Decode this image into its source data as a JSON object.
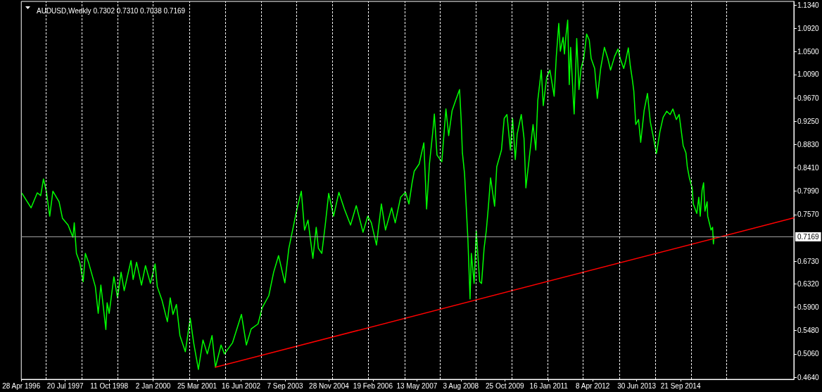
{
  "chart_data": {
    "type": "line",
    "title": "AUDUSD,Weekly 0.7302 0.7310 0.7038 0.7169",
    "series": [
      {
        "color": "#00ff00",
        "x": [
          "1996-05-06",
          "1996-08-06",
          "1996-10-08",
          "1996-11-12",
          "1996-12-10",
          "1997-01-08",
          "1997-02-12",
          "1997-03-16",
          "1997-05-18",
          "1997-06-22",
          "1997-08-18",
          "1997-10-06",
          "1997-10-20",
          "1997-11-11",
          "1997-12-15",
          "1998-01-19",
          "1998-02-10",
          "1998-03-14",
          "1998-05-23",
          "1998-06-21",
          "1998-07-18",
          "1998-09-07",
          "1998-09-20",
          "1998-10-11",
          "1998-11-28",
          "1999-01-04",
          "1999-02-09",
          "1999-03-13",
          "1999-05-21",
          "1999-06-12",
          "1999-07-17",
          "1999-09-05",
          "1999-10-16",
          "1999-12-05",
          "2000-01-22",
          "2000-02-13",
          "2000-04-02",
          "2000-05-26",
          "2000-06-24",
          "2000-07-22",
          "2000-08-26",
          "2000-10-01",
          "2000-11-25",
          "2001-01-14",
          "2001-02-18",
          "2001-04-07",
          "2001-05-24",
          "2001-07-07",
          "2001-08-24",
          "2001-09-28",
          "2001-11-24",
          "2001-12-28",
          "2002-03-21",
          "2002-06-20",
          "2002-08-09",
          "2002-09-27",
          "2002-12-06",
          "2003-01-17",
          "2003-03-26",
          "2003-05-14",
          "2003-07-03",
          "2003-09-05",
          "2003-10-16",
          "2003-12-04",
          "2004-01-02",
          "2004-02-20",
          "2004-03-24",
          "2004-04-28",
          "2004-06-17",
          "2004-07-21",
          "2004-08-12",
          "2004-09-16",
          "2004-10-21",
          "2004-11-25",
          "2005-01-14",
          "2005-03-09",
          "2005-05-04",
          "2005-07-06",
          "2005-09-02",
          "2005-11-10",
          "2005-12-28",
          "2006-02-03",
          "2006-03-27",
          "2006-05-16",
          "2006-06-27",
          "2006-08-29",
          "2006-10-04",
          "2006-11-28",
          "2007-01-17",
          "2007-02-21",
          "2007-03-25",
          "2007-04-16",
          "2007-06-05",
          "2007-07-23",
          "2007-08-20",
          "2007-09-18",
          "2007-10-22",
          "2007-11-07",
          "2007-12-04",
          "2008-01-22",
          "2008-03-04",
          "2008-04-01",
          "2008-05-06",
          "2008-06-10",
          "2008-07-21",
          "2008-08-05",
          "2008-08-19",
          "2008-09-10",
          "2008-10-14",
          "2008-11-05",
          "2008-11-18",
          "2008-12-16",
          "2009-01-07",
          "2009-02-11",
          "2009-03-02",
          "2009-03-28",
          "2009-04-20",
          "2009-05-11",
          "2009-06-02",
          "2009-07-13",
          "2009-08-04",
          "2009-09-21",
          "2009-10-19",
          "2009-11-16",
          "2009-12-21",
          "2010-01-12",
          "2010-02-09",
          "2010-02-28",
          "2010-04-11",
          "2010-05-09",
          "2010-05-28",
          "2010-06-27",
          "2010-08-09",
          "2010-09-06",
          "2010-09-26",
          "2010-11-01",
          "2010-11-21",
          "2010-12-26",
          "2011-01-28",
          "2011-03-12",
          "2011-04-03",
          "2011-04-28",
          "2011-05-14",
          "2011-06-11",
          "2011-06-25",
          "2011-07-09",
          "2011-07-28",
          "2011-08-13",
          "2011-08-27",
          "2011-09-24",
          "2011-10-02",
          "2011-10-28",
          "2011-11-20",
          "2011-12-11",
          "2012-01-08",
          "2012-02-06",
          "2012-03-04",
          "2012-03-23",
          "2012-04-28",
          "2012-05-25",
          "2012-06-28",
          "2012-08-05",
          "2012-09-09",
          "2012-10-07",
          "2012-11-18",
          "2012-12-22",
          "2013-01-13",
          "2013-02-18",
          "2013-03-09",
          "2013-04-06",
          "2013-04-26",
          "2013-05-17",
          "2013-06-01",
          "2013-06-21",
          "2013-07-19",
          "2013-08-10",
          "2013-09-14",
          "2013-10-18",
          "2013-11-16",
          "2013-12-14",
          "2014-01-18",
          "2014-02-22",
          "2014-03-27",
          "2014-05-02",
          "2014-06-06",
          "2014-07-04",
          "2014-08-08",
          "2014-09-06",
          "2014-10-17",
          "2014-11-14",
          "2014-11-28",
          "2014-12-19",
          "2015-01-16",
          "2015-01-28",
          "2015-03-05",
          "2015-03-25",
          "2015-04-09",
          "2015-04-28",
          "2015-05-13",
          "2015-05-27",
          "2015-06-18",
          "2015-06-24",
          "2015-07-16",
          "2015-07-28",
          "2015-08-13",
          "2015-08-21",
          "2015-08-27"
        ],
        "values": [
          0.795,
          0.769,
          0.796,
          0.791,
          0.821,
          0.799,
          0.754,
          0.799,
          0.78,
          0.75,
          0.738,
          0.716,
          0.742,
          0.687,
          0.671,
          0.636,
          0.687,
          0.671,
          0.627,
          0.579,
          0.63,
          0.55,
          0.598,
          0.579,
          0.645,
          0.607,
          0.653,
          0.62,
          0.674,
          0.64,
          0.671,
          0.63,
          0.665,
          0.633,
          0.668,
          0.627,
          0.602,
          0.564,
          0.607,
          0.577,
          0.595,
          0.539,
          0.51,
          0.57,
          0.526,
          0.478,
          0.531,
          0.506,
          0.539,
          0.482,
          0.522,
          0.506,
          0.526,
          0.577,
          0.522,
          0.551,
          0.56,
          0.589,
          0.611,
          0.653,
          0.683,
          0.634,
          0.696,
          0.738,
          0.763,
          0.799,
          0.729,
          0.747,
          0.678,
          0.734,
          0.696,
          0.687,
          0.738,
          0.795,
          0.754,
          0.797,
          0.767,
          0.738,
          0.773,
          0.725,
          0.754,
          0.742,
          0.702,
          0.776,
          0.729,
          0.769,
          0.742,
          0.788,
          0.797,
          0.776,
          0.814,
          0.835,
          0.848,
          0.886,
          0.767,
          0.848,
          0.906,
          0.938,
          0.864,
          0.852,
          0.947,
          0.899,
          0.944,
          0.962,
          0.982,
          0.932,
          0.868,
          0.83,
          0.712,
          0.605,
          0.687,
          0.633,
          0.728,
          0.636,
          0.633,
          0.696,
          0.729,
          0.772,
          0.823,
          0.772,
          0.843,
          0.873,
          0.93,
          0.937,
          0.873,
          0.93,
          0.856,
          0.902,
          0.937,
          0.894,
          0.805,
          0.852,
          0.919,
          0.873,
          0.962,
          1.017,
          0.953,
          1.004,
          1.017,
          0.97,
          1.042,
          1.101,
          1.051,
          1.076,
          1.046,
          1.077,
          1.107,
          0.991,
          1.058,
          0.962,
          0.938,
          1.074,
          0.982,
          1.02,
          1.038,
          1.082,
          1.071,
          1.038,
          1.02,
          0.966,
          1.02,
          1.058,
          1.038,
          1.017,
          1.042,
          1.055,
          1.038,
          1.02,
          1.033,
          1.057,
          1.025,
          1.0,
          0.979,
          0.919,
          0.928,
          0.887,
          0.944,
          0.975,
          0.924,
          0.899,
          0.867,
          0.906,
          0.932,
          0.943,
          0.937,
          0.947,
          0.928,
          0.937,
          0.881,
          0.868,
          0.843,
          0.823,
          0.805,
          0.776,
          0.759,
          0.788,
          0.754,
          0.801,
          0.814,
          0.763,
          0.78,
          0.754,
          0.738,
          0.729,
          0.734,
          0.704,
          0.717
        ]
      },
      {
        "type": "line",
        "color": "#ff0000",
        "x": [
          "2001-09-28",
          "2017-11-18"
        ],
        "values": [
          0.482,
          0.751
        ]
      }
    ],
    "xlim": [
      "1996-04-28",
      "2017-11-18"
    ],
    "xticks": [
      {
        "value": "1996-04-28",
        "label": "28 Apr 1996"
      },
      {
        "value": "1997-07-20",
        "label": "20 Jul 1997"
      },
      {
        "value": "1998-10-11",
        "label": "11 Oct 1998"
      },
      {
        "value": "2000-01-02",
        "label": "2 Jan 2000"
      },
      {
        "value": "2001-03-25",
        "label": "25 Mar 2001"
      },
      {
        "value": "2002-06-16",
        "label": "16 Jun 2002"
      },
      {
        "value": "2003-09-07",
        "label": "7 Sep 2003"
      },
      {
        "value": "2004-11-28",
        "label": "28 Nov 2004"
      },
      {
        "value": "2006-02-19",
        "label": "19 Feb 2006"
      },
      {
        "value": "2007-05-13",
        "label": "13 May 2007"
      },
      {
        "value": "2008-08-03",
        "label": "3 Aug 2008"
      },
      {
        "value": "2009-10-25",
        "label": "25 Oct 2009"
      },
      {
        "value": "2011-01-16",
        "label": "16 Jan 2011"
      },
      {
        "value": "2012-04-08",
        "label": "8 Apr 2012"
      },
      {
        "value": "2013-06-30",
        "label": "30 Jun 2013"
      },
      {
        "value": "2014-09-21",
        "label": "21 Sep 2014"
      }
    ],
    "ylim": [
      0.4602,
      1.1407
    ],
    "yticks": [
      {
        "value": 1.134,
        "label": "1.1340"
      },
      {
        "value": 1.092,
        "label": "1.0920"
      },
      {
        "value": 1.05,
        "label": "1.0500"
      },
      {
        "value": 1.009,
        "label": "1.0090"
      },
      {
        "value": 0.967,
        "label": "0.9670"
      },
      {
        "value": 0.925,
        "label": "0.9250"
      },
      {
        "value": 0.883,
        "label": "0.8830"
      },
      {
        "value": 0.841,
        "label": "0.8410"
      },
      {
        "value": 0.799,
        "label": "0.7990"
      },
      {
        "value": 0.757,
        "label": "0.7570"
      },
      {
        "value": 0.673,
        "label": "0.6730"
      },
      {
        "value": 0.632,
        "label": "0.6320"
      },
      {
        "value": 0.59,
        "label": "0.5900"
      },
      {
        "value": 0.548,
        "label": "0.5480"
      },
      {
        "value": 0.506,
        "label": "0.5060"
      },
      {
        "value": 0.464,
        "label": "0.4640"
      }
    ],
    "ref_lines": [
      {
        "axis": "y",
        "value": 0.7169,
        "label": "0.7169",
        "color": "#a0a0a0"
      },
      {
        "axis": "x",
        "value": "1997-01-05",
        "color": "#ffffff",
        "line_style": "dashed"
      },
      {
        "axis": "x",
        "value": "1998-01-04",
        "color": "#ffffff",
        "line_style": "dashed"
      },
      {
        "axis": "x",
        "value": "1999-01-03",
        "color": "#ffffff",
        "line_style": "dashed"
      },
      {
        "axis": "x",
        "value": "2000-01-02",
        "color": "#ffffff",
        "line_style": "dashed"
      },
      {
        "axis": "x",
        "value": "2001-01-07",
        "color": "#ffffff",
        "line_style": "dashed"
      },
      {
        "axis": "x",
        "value": "2002-01-06",
        "color": "#ffffff",
        "line_style": "dashed"
      },
      {
        "axis": "x",
        "value": "2003-01-05",
        "color": "#ffffff",
        "line_style": "dashed"
      },
      {
        "axis": "x",
        "value": "2004-01-04",
        "color": "#ffffff",
        "line_style": "dashed"
      },
      {
        "axis": "x",
        "value": "2005-01-02",
        "color": "#ffffff",
        "line_style": "dashed"
      },
      {
        "axis": "x",
        "value": "2006-01-01",
        "color": "#ffffff",
        "line_style": "dashed"
      },
      {
        "axis": "x",
        "value": "2007-01-07",
        "color": "#ffffff",
        "line_style": "dashed"
      },
      {
        "axis": "x",
        "value": "2008-01-06",
        "color": "#ffffff",
        "line_style": "dashed"
      },
      {
        "axis": "x",
        "value": "2009-01-04",
        "color": "#ffffff",
        "line_style": "dashed"
      },
      {
        "axis": "x",
        "value": "2010-01-03",
        "color": "#ffffff",
        "line_style": "dashed"
      },
      {
        "axis": "x",
        "value": "2011-01-02",
        "color": "#ffffff",
        "line_style": "dashed"
      },
      {
        "axis": "x",
        "value": "2012-01-01",
        "color": "#ffffff",
        "line_style": "dashed"
      },
      {
        "axis": "x",
        "value": "2013-01-06",
        "color": "#ffffff",
        "line_style": "dashed"
      },
      {
        "axis": "x",
        "value": "2014-01-05",
        "color": "#ffffff",
        "line_style": "dashed"
      },
      {
        "axis": "x",
        "value": "2015-01-04",
        "color": "#ffffff",
        "line_style": "dashed"
      },
      {
        "axis": "x",
        "value": "2016-01-03",
        "color": "#ffffff",
        "line_style": "dashed"
      }
    ]
  }
}
